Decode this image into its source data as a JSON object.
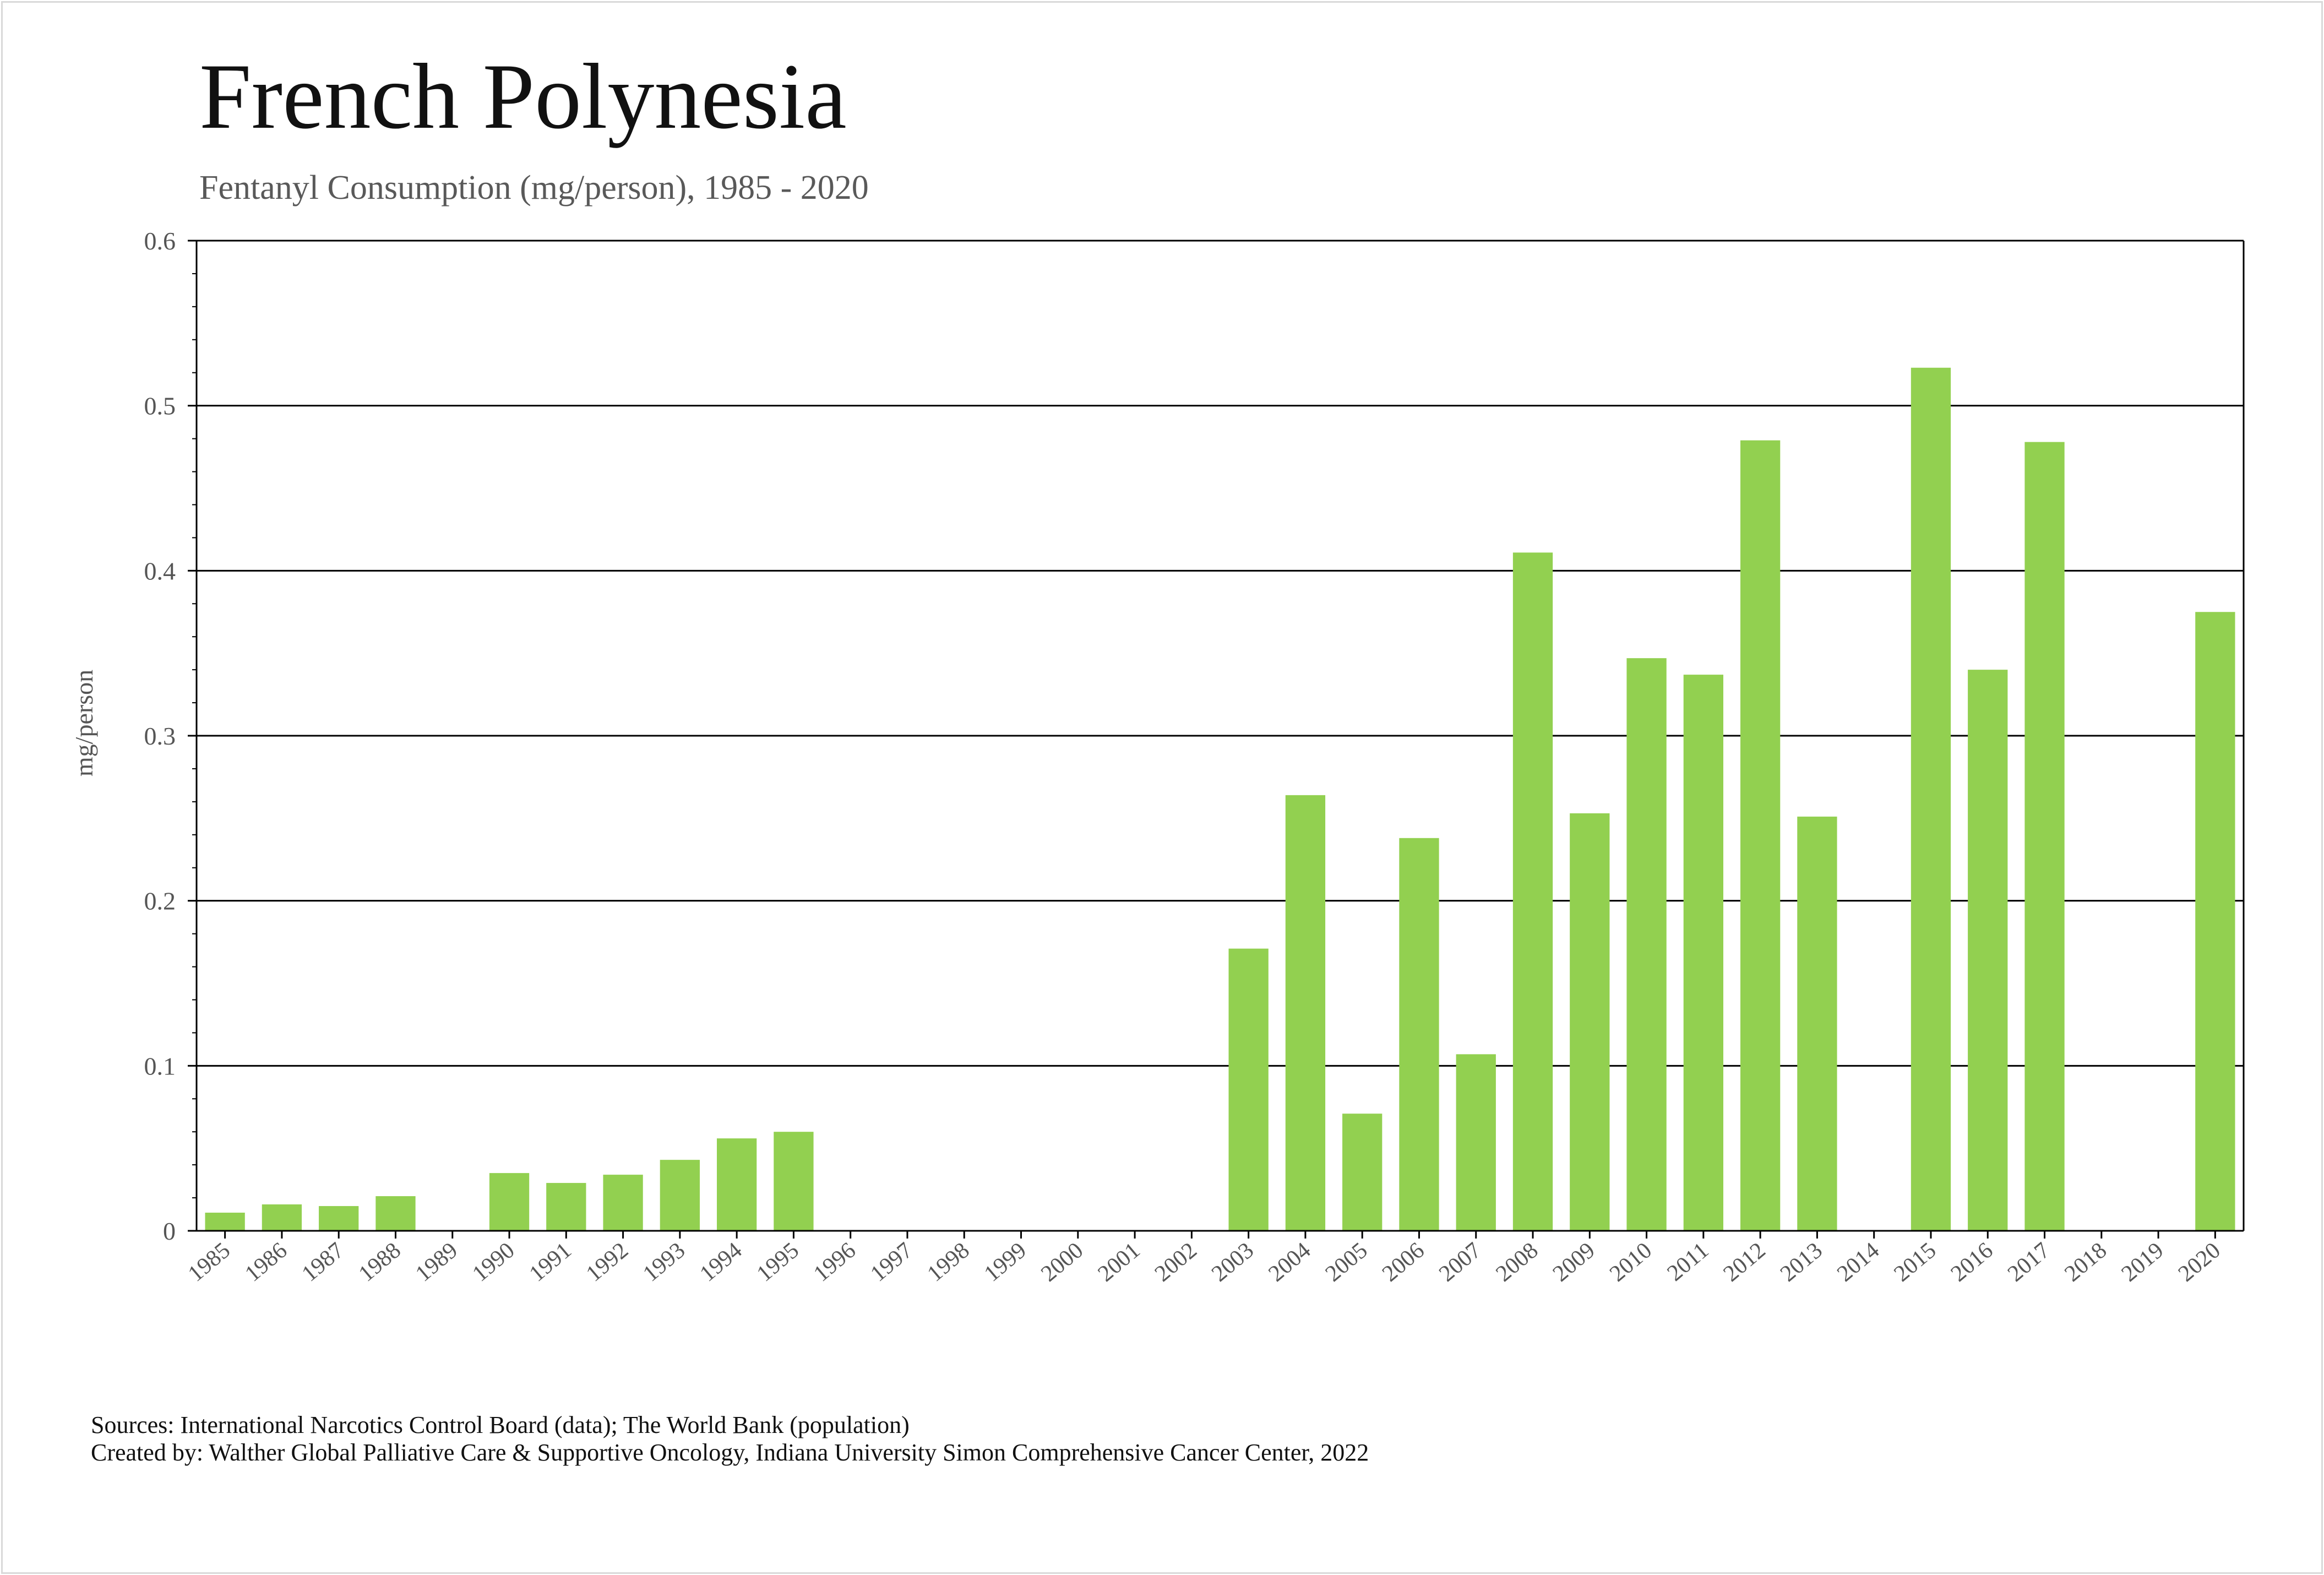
{
  "title": "French Polynesia",
  "subtitle": "Fentanyl Consumption (mg/person), 1985 - 2020",
  "sources_line": "Sources: International Narcotics Control Board (data); The World Bank (population)",
  "created_line": "Created by: Walther Global Palliative Care & Supportive Oncology, Indiana University Simon Comprehensive Cancer Center, 2022",
  "colors": {
    "bar": "#92d050",
    "grid": "#000000",
    "text": "#555555"
  },
  "chart_data": {
    "type": "bar",
    "ylabel": "mg/person",
    "ylim": [
      0,
      0.6
    ],
    "yticks": [
      0,
      0.1,
      0.2,
      0.3,
      0.4,
      0.5,
      0.6
    ],
    "ytick_labels": [
      "0",
      "0.1",
      "0.2",
      "0.3",
      "0.4",
      "0.5",
      "0.6"
    ],
    "grid": true,
    "categories": [
      "1985",
      "1986",
      "1987",
      "1988",
      "1989",
      "1990",
      "1991",
      "1992",
      "1993",
      "1994",
      "1995",
      "1996",
      "1997",
      "1998",
      "1999",
      "2000",
      "2001",
      "2002",
      "2003",
      "2004",
      "2005",
      "2006",
      "2007",
      "2008",
      "2009",
      "2010",
      "2011",
      "2012",
      "2013",
      "2014",
      "2015",
      "2016",
      "2017",
      "2018",
      "2019",
      "2020"
    ],
    "values": [
      0.011,
      0.016,
      0.015,
      0.021,
      0,
      0.035,
      0.029,
      0.034,
      0.043,
      0.056,
      0.06,
      0,
      0,
      0,
      0,
      0,
      0,
      0,
      0.171,
      0.264,
      0.071,
      0.238,
      0.107,
      0.411,
      0.253,
      0.347,
      0.337,
      0.479,
      0.251,
      0,
      0.523,
      0.34,
      0.478,
      0,
      0,
      0.375
    ]
  }
}
